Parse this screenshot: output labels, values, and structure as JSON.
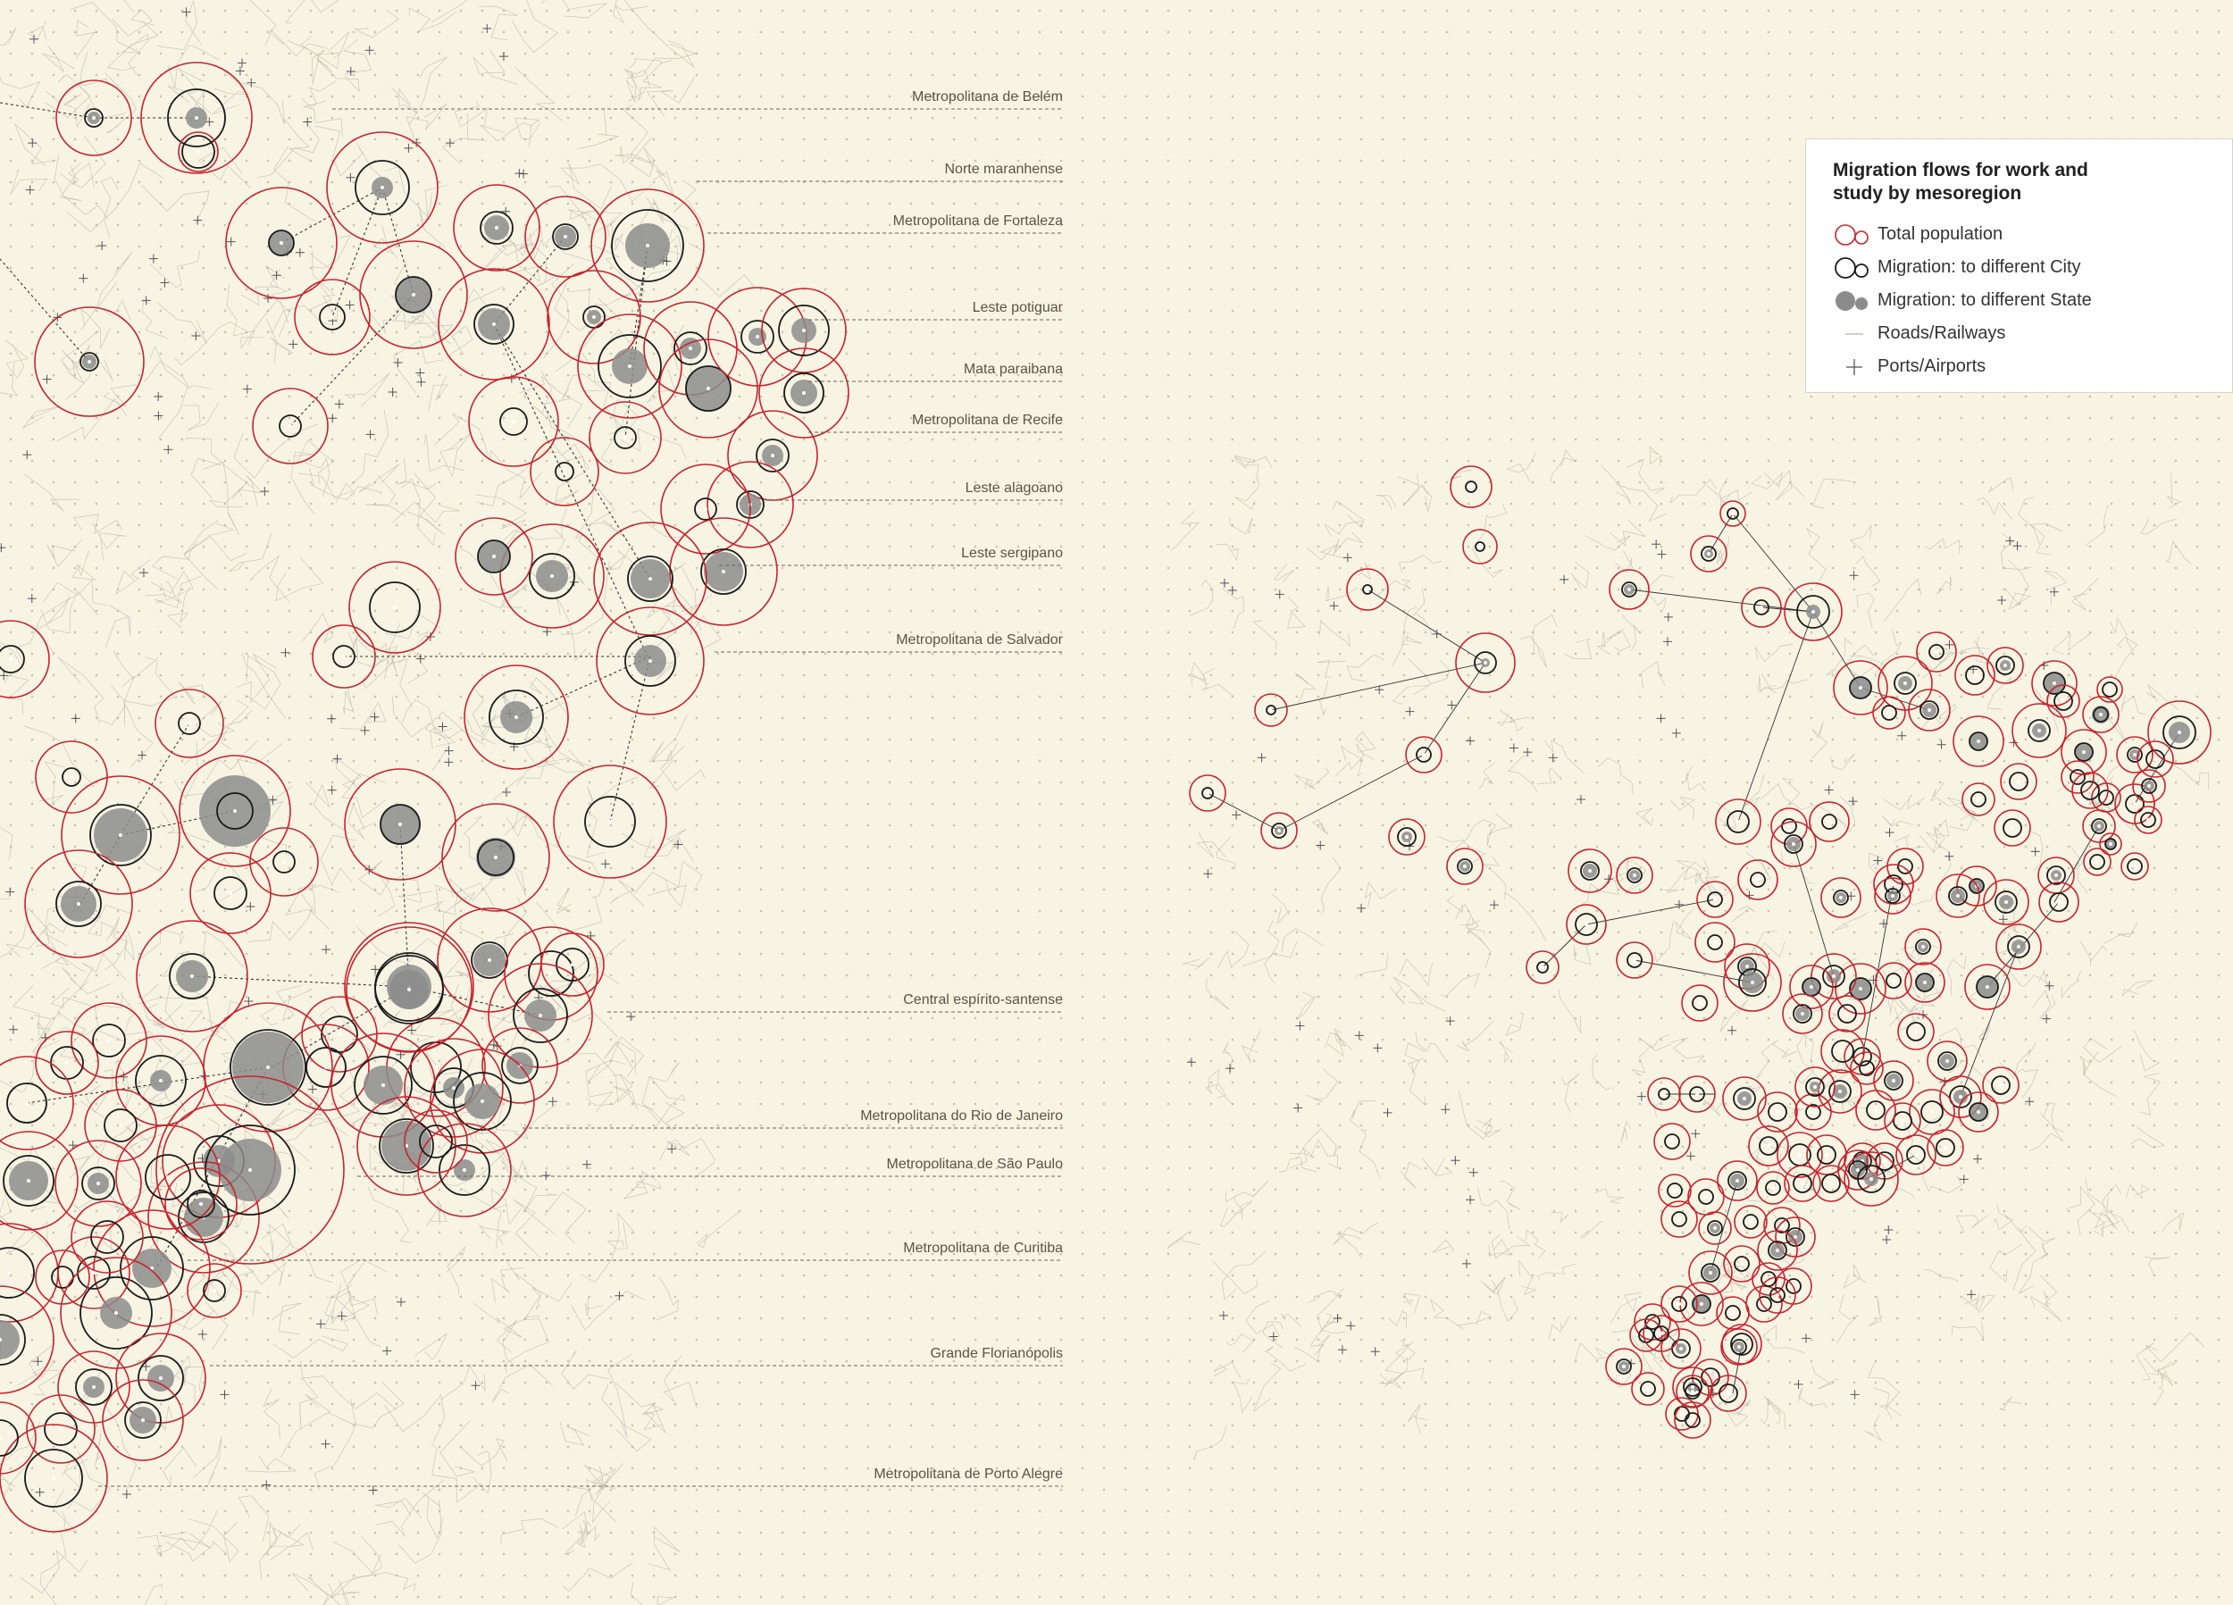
{
  "legend": {
    "title": "Migration flows for work and study by mesoregion",
    "items": [
      {
        "label": "Total population",
        "symbol": "red-circles-icon"
      },
      {
        "label": "Migration: to different City",
        "symbol": "black-circles-icon"
      },
      {
        "label": "Migration: to different State",
        "symbol": "gray-dots-icon"
      },
      {
        "label": "Roads/Railways",
        "symbol": "road-line-icon"
      },
      {
        "label": "Ports/Airports",
        "symbol": "plus-icon"
      }
    ]
  },
  "colors": {
    "background": "#f8f4e4",
    "total_population": "#c8232c",
    "migration_city": "#1a1a1a",
    "migration_state": "#8c8c8c",
    "roads": "#b8b4a8",
    "labels": "#5a5448"
  },
  "mesoregions": [
    {
      "name": "Metropolitana de Belém"
    },
    {
      "name": "Norte maranhense"
    },
    {
      "name": "Metropolitana de Fortaleza"
    },
    {
      "name": "Leste potiguar"
    },
    {
      "name": "Mata paraibana"
    },
    {
      "name": "Metropolitana de Recife"
    },
    {
      "name": "Leste alagoano"
    },
    {
      "name": "Leste sergipano"
    },
    {
      "name": "Metropolitana de Salvador"
    },
    {
      "name": "Central espírito-santense"
    },
    {
      "name": "Metropolitana do Rio de Janeiro"
    },
    {
      "name": "Metropolitana de São Paulo"
    },
    {
      "name": "Metropolitana de Curitiba"
    },
    {
      "name": "Grande Florianópolis"
    },
    {
      "name": "Metropolitana de Porto Alegre"
    }
  ]
}
